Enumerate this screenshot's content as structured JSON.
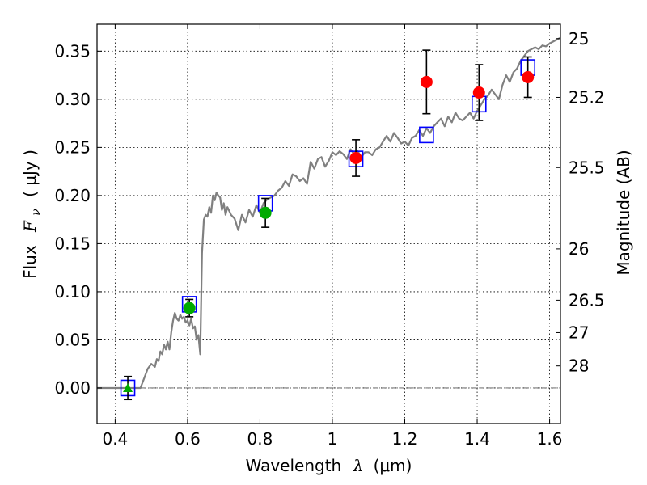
{
  "chart_data": {
    "type": "scatter",
    "xlabel": "Wavelength",
    "xlabel_symbol": "λ",
    "xlabel_unit": "(μm)",
    "ylabel": "Flux",
    "ylabel_symbol": "F",
    "ylabel_subscript": "ν",
    "ylabel_unit": "( μJy )",
    "y2label": "Magnitude (AB)",
    "xlim": [
      0.35,
      1.63
    ],
    "ylim": [
      -0.037,
      0.378
    ],
    "grid": true,
    "x_ticks": [
      {
        "value": 0.4,
        "label": "0.4"
      },
      {
        "value": 0.6,
        "label": "0.6"
      },
      {
        "value": 0.8,
        "label": "0.8"
      },
      {
        "value": 1.0,
        "label": "1"
      },
      {
        "value": 1.2,
        "label": "1.2"
      },
      {
        "value": 1.4,
        "label": "1.4"
      },
      {
        "value": 1.6,
        "label": "1.6"
      }
    ],
    "y_ticks": [
      {
        "value": 0.0,
        "label": "0.00"
      },
      {
        "value": 0.05,
        "label": "0.05"
      },
      {
        "value": 0.1,
        "label": "0.10"
      },
      {
        "value": 0.15,
        "label": "0.15"
      },
      {
        "value": 0.2,
        "label": "0.20"
      },
      {
        "value": 0.25,
        "label": "0.25"
      },
      {
        "value": 0.3,
        "label": "0.30"
      },
      {
        "value": 0.35,
        "label": "0.35"
      }
    ],
    "y2_ticks": [
      {
        "mag": 25,
        "label": "25"
      },
      {
        "mag": 25.2,
        "label": "25.2"
      },
      {
        "mag": 25.5,
        "label": "25.5"
      },
      {
        "mag": 26,
        "label": "26"
      },
      {
        "mag": 26.5,
        "label": "26.5"
      },
      {
        "mag": 27,
        "label": "27"
      },
      {
        "mag": 28,
        "label": "28"
      }
    ],
    "zero_line": 0.0,
    "series": [
      {
        "kind": "model_spectrum",
        "color": "#808080",
        "x": [
          0.35,
          0.46,
          0.47,
          0.48,
          0.49,
          0.5,
          0.51,
          0.515,
          0.52,
          0.525,
          0.53,
          0.535,
          0.54,
          0.545,
          0.55,
          0.555,
          0.56,
          0.565,
          0.57,
          0.575,
          0.58,
          0.585,
          0.59,
          0.595,
          0.6,
          0.605,
          0.61,
          0.615,
          0.62,
          0.625,
          0.63,
          0.635,
          0.64,
          0.645,
          0.65,
          0.655,
          0.66,
          0.665,
          0.67,
          0.675,
          0.68,
          0.685,
          0.69,
          0.695,
          0.7,
          0.705,
          0.71,
          0.715,
          0.72,
          0.73,
          0.74,
          0.75,
          0.76,
          0.77,
          0.78,
          0.79,
          0.8,
          0.81,
          0.82,
          0.83,
          0.84,
          0.85,
          0.86,
          0.87,
          0.88,
          0.89,
          0.9,
          0.91,
          0.92,
          0.93,
          0.94,
          0.95,
          0.96,
          0.97,
          0.98,
          0.99,
          1.0,
          1.01,
          1.02,
          1.03,
          1.04,
          1.05,
          1.06,
          1.07,
          1.08,
          1.09,
          1.1,
          1.11,
          1.12,
          1.13,
          1.14,
          1.15,
          1.16,
          1.17,
          1.18,
          1.19,
          1.2,
          1.21,
          1.22,
          1.23,
          1.24,
          1.25,
          1.26,
          1.27,
          1.28,
          1.29,
          1.3,
          1.31,
          1.32,
          1.33,
          1.34,
          1.35,
          1.36,
          1.37,
          1.38,
          1.39,
          1.4,
          1.41,
          1.42,
          1.43,
          1.44,
          1.45,
          1.46,
          1.47,
          1.48,
          1.49,
          1.5,
          1.51,
          1.52,
          1.53,
          1.54,
          1.55,
          1.56,
          1.57,
          1.58,
          1.59,
          1.6,
          1.61,
          1.62,
          1.63
        ],
        "y": [
          0.0,
          0.0,
          0.0,
          0.01,
          0.02,
          0.025,
          0.022,
          0.03,
          0.028,
          0.038,
          0.035,
          0.045,
          0.04,
          0.048,
          0.04,
          0.058,
          0.07,
          0.078,
          0.072,
          0.07,
          0.076,
          0.072,
          0.074,
          0.068,
          0.07,
          0.065,
          0.072,
          0.062,
          0.064,
          0.05,
          0.055,
          0.035,
          0.14,
          0.175,
          0.18,
          0.178,
          0.188,
          0.182,
          0.2,
          0.195,
          0.203,
          0.2,
          0.198,
          0.185,
          0.192,
          0.18,
          0.188,
          0.184,
          0.18,
          0.176,
          0.164,
          0.18,
          0.172,
          0.185,
          0.178,
          0.19,
          0.182,
          0.192,
          0.196,
          0.198,
          0.2,
          0.205,
          0.208,
          0.215,
          0.21,
          0.222,
          0.22,
          0.215,
          0.218,
          0.212,
          0.235,
          0.228,
          0.238,
          0.24,
          0.23,
          0.236,
          0.245,
          0.242,
          0.246,
          0.243,
          0.238,
          0.248,
          0.243,
          0.246,
          0.24,
          0.245,
          0.245,
          0.242,
          0.248,
          0.25,
          0.256,
          0.262,
          0.256,
          0.265,
          0.26,
          0.254,
          0.256,
          0.252,
          0.26,
          0.262,
          0.268,
          0.262,
          0.27,
          0.265,
          0.272,
          0.276,
          0.28,
          0.272,
          0.282,
          0.276,
          0.286,
          0.28,
          0.278,
          0.282,
          0.286,
          0.28,
          0.288,
          0.294,
          0.3,
          0.304,
          0.31,
          0.305,
          0.3,
          0.315,
          0.325,
          0.318,
          0.328,
          0.332,
          0.34,
          0.345,
          0.35,
          0.352,
          0.354,
          0.352,
          0.356,
          0.355,
          0.358,
          0.36,
          0.362,
          0.364
        ]
      },
      {
        "kind": "model_photometry",
        "marker": "square",
        "color": "#0000ff",
        "x": [
          0.435,
          0.605,
          0.815,
          1.065,
          1.26,
          1.405,
          1.54
        ],
        "y": [
          0.0,
          0.087,
          0.192,
          0.238,
          0.263,
          0.295,
          0.333
        ]
      },
      {
        "kind": "upper_limit",
        "marker": "triangle",
        "color": "#00aa00",
        "x": [
          0.435
        ],
        "y": [
          0.0
        ],
        "err": [
          0.012
        ]
      },
      {
        "kind": "observed",
        "marker": "circle",
        "color": "#00aa00",
        "x": [
          0.605,
          0.815
        ],
        "y": [
          0.083,
          0.182
        ],
        "err": [
          0.009,
          0.015
        ]
      },
      {
        "kind": "observed",
        "marker": "circle",
        "color": "#ff0000",
        "x": [
          1.065,
          1.26,
          1.405,
          1.54
        ],
        "y": [
          0.239,
          0.318,
          0.307,
          0.323
        ],
        "err": [
          0.019,
          0.033,
          0.029,
          0.021
        ]
      }
    ]
  }
}
